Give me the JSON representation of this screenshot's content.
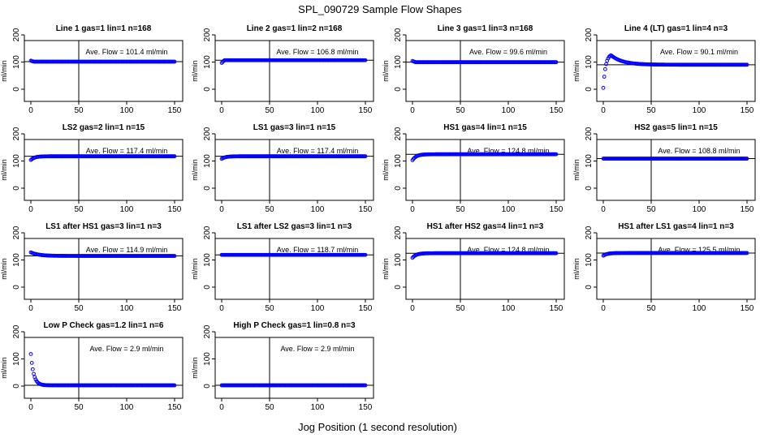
{
  "title": "SPL_090729  Sample Flow Shapes",
  "xlabel": "Jog Position (1 second resolution)",
  "colors": {
    "points": "#0000ff",
    "axes": "#000000",
    "background": "#ffffff"
  },
  "chart_data": [
    {
      "type": "scatter",
      "title": "Line 1 gas=1 lin=1 n=168",
      "ylabel": "ml/min",
      "annotation": "Ave. Flow =  101.4  ml/min",
      "avg": 101.4,
      "vline": 50,
      "xlim": [
        0,
        150
      ],
      "ylim": [
        0,
        200
      ],
      "xticks": [
        "0",
        "50",
        "100",
        "150"
      ],
      "yticks": [
        "0",
        "100",
        "200"
      ],
      "profile": "flat",
      "start": 105,
      "level": 101.4
    },
    {
      "type": "scatter",
      "title": "Line 2 gas=1 lin=2 n=168",
      "ylabel": "ml/min",
      "annotation": "Ave. Flow =  106.8  ml/min",
      "avg": 106.8,
      "vline": 50,
      "xlim": [
        0,
        150
      ],
      "ylim": [
        0,
        200
      ],
      "xticks": [
        "0",
        "50",
        "100",
        "150"
      ],
      "yticks": [
        "0",
        "100",
        "200"
      ],
      "profile": "flat",
      "start": 97,
      "level": 106.8
    },
    {
      "type": "scatter",
      "title": "Line 3 gas=1 lin=3 n=168",
      "ylabel": "ml/min",
      "annotation": "Ave. Flow =  99.6  ml/min",
      "avg": 99.6,
      "vline": 50,
      "xlim": [
        0,
        150
      ],
      "ylim": [
        0,
        200
      ],
      "xticks": [
        "0",
        "50",
        "100",
        "150"
      ],
      "yticks": [
        "0",
        "100",
        "200"
      ],
      "profile": "flat",
      "start": 104,
      "level": 99.6
    },
    {
      "type": "scatter",
      "title": "Line 4 (LT) gas=1 lin=4 n=3",
      "ylabel": "ml/min",
      "annotation": "Ave. Flow =  90.1  ml/min",
      "avg": 90.1,
      "vline": 50,
      "xlim": [
        0,
        150
      ],
      "ylim": [
        0,
        200
      ],
      "xticks": [
        "0",
        "50",
        "100",
        "150"
      ],
      "yticks": [
        "0",
        "100",
        "200"
      ],
      "profile": "overshoot",
      "start": 5,
      "peak": 125,
      "level": 90.1
    },
    {
      "type": "scatter",
      "title": "LS2 gas=2 lin=1 n=15",
      "ylabel": "ml/min",
      "annotation": "Ave. Flow =  117.4  ml/min",
      "avg": 117.4,
      "vline": 50,
      "xlim": [
        0,
        150
      ],
      "ylim": [
        0,
        200
      ],
      "xticks": [
        "0",
        "50",
        "100",
        "150"
      ],
      "yticks": [
        "0",
        "100",
        "200"
      ],
      "profile": "rise",
      "start": 104,
      "level": 117.4
    },
    {
      "type": "scatter",
      "title": "LS1 gas=3 lin=1 n=15",
      "ylabel": "ml/min",
      "annotation": "Ave. Flow =  117.4  ml/min",
      "avg": 117.4,
      "vline": 50,
      "xlim": [
        0,
        150
      ],
      "ylim": [
        0,
        200
      ],
      "xticks": [
        "0",
        "50",
        "100",
        "150"
      ],
      "yticks": [
        "0",
        "100",
        "200"
      ],
      "profile": "rise",
      "start": 108,
      "level": 117.4
    },
    {
      "type": "scatter",
      "title": "HS1 gas=4 lin=1 n=15",
      "ylabel": "ml/min",
      "annotation": "Ave. Flow =  124.8  ml/min",
      "avg": 124.8,
      "vline": 50,
      "xlim": [
        0,
        150
      ],
      "ylim": [
        0,
        200
      ],
      "xticks": [
        "0",
        "50",
        "100",
        "150"
      ],
      "yticks": [
        "0",
        "100",
        "200"
      ],
      "profile": "rise",
      "start": 103,
      "level": 124.8
    },
    {
      "type": "scatter",
      "title": "HS2 gas=5 lin=1 n=15",
      "ylabel": "ml/min",
      "annotation": "Ave. Flow =  108.8  ml/min",
      "avg": 108.8,
      "vline": 50,
      "xlim": [
        0,
        150
      ],
      "ylim": [
        0,
        200
      ],
      "xticks": [
        "0",
        "50",
        "100",
        "150"
      ],
      "yticks": [
        "0",
        "100",
        "200"
      ],
      "profile": "flat",
      "start": 108.8,
      "level": 108.8
    },
    {
      "type": "scatter",
      "title": "LS1 after HS1 gas=3 lin=1 n=3",
      "ylabel": "ml/min",
      "annotation": "Ave. Flow =  114.9  ml/min",
      "avg": 114.9,
      "vline": 50,
      "xlim": [
        0,
        150
      ],
      "ylim": [
        0,
        200
      ],
      "xticks": [
        "0",
        "50",
        "100",
        "150"
      ],
      "yticks": [
        "0",
        "100",
        "200"
      ],
      "profile": "fall",
      "start": 128,
      "level": 114.9
    },
    {
      "type": "scatter",
      "title": "LS1 after LS2 gas=3 lin=1 n=3",
      "ylabel": "ml/min",
      "annotation": "Ave. Flow =  118.7  ml/min",
      "avg": 118.7,
      "vline": 50,
      "xlim": [
        0,
        150
      ],
      "ylim": [
        0,
        200
      ],
      "xticks": [
        "0",
        "50",
        "100",
        "150"
      ],
      "yticks": [
        "0",
        "100",
        "200"
      ],
      "profile": "flat",
      "start": 118.7,
      "level": 118.7
    },
    {
      "type": "scatter",
      "title": "HS1 after HS2 gas=4 lin=1 n=3",
      "ylabel": "ml/min",
      "annotation": "Ave. Flow =  124.8  ml/min",
      "avg": 124.8,
      "vline": 50,
      "xlim": [
        0,
        150
      ],
      "ylim": [
        0,
        200
      ],
      "xticks": [
        "0",
        "50",
        "100",
        "150"
      ],
      "yticks": [
        "0",
        "100",
        "200"
      ],
      "profile": "rise",
      "start": 108,
      "level": 124.8
    },
    {
      "type": "scatter",
      "title": "HS1 after LS1 gas=4 lin=1 n=3",
      "ylabel": "ml/min",
      "annotation": "Ave. Flow =  125.5  ml/min",
      "avg": 125.5,
      "vline": 50,
      "xlim": [
        0,
        150
      ],
      "ylim": [
        0,
        200
      ],
      "xticks": [
        "0",
        "50",
        "100",
        "150"
      ],
      "yticks": [
        "0",
        "100",
        "200"
      ],
      "profile": "rise",
      "start": 116,
      "level": 125.5
    },
    {
      "type": "scatter",
      "title": "Low P Check gas=1.2 lin=1 n=6",
      "ylabel": "ml/min",
      "annotation": "Ave. Flow =  2.9  ml/min",
      "avg": 2.9,
      "vline": 50,
      "xlim": [
        0,
        150
      ],
      "ylim": [
        0,
        200
      ],
      "xticks": [
        "0",
        "50",
        "100",
        "150"
      ],
      "yticks": [
        "0",
        "100",
        "200"
      ],
      "profile": "decay",
      "start": 118,
      "level": 2.9
    },
    {
      "type": "scatter",
      "title": "High P Check gas=1 lin=0.8 n=3",
      "ylabel": "ml/min",
      "annotation": "Ave. Flow =  2.9  ml/min",
      "avg": 2.9,
      "vline": 50,
      "xlim": [
        0,
        150
      ],
      "ylim": [
        0,
        200
      ],
      "xticks": [
        "0",
        "50",
        "100",
        "150"
      ],
      "yticks": [
        "0",
        "100",
        "200"
      ],
      "profile": "flat",
      "start": 2.9,
      "level": 2.9
    }
  ]
}
